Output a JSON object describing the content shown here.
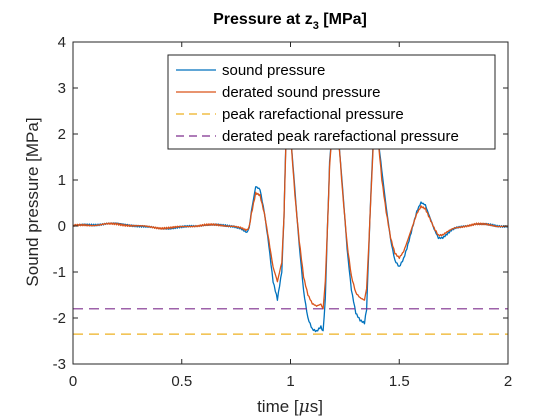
{
  "chart_data": {
    "type": "line",
    "title": "Pressure at z",
    "title_subscript": "3",
    "title_suffix": " [MPa]",
    "xlabel_prefix": "time [",
    "xlabel_greek": "μ",
    "xlabel_suffix": "s]",
    "ylabel": "Sound pressure [MPa]",
    "xlim": [
      0,
      2
    ],
    "ylim": [
      -3,
      4
    ],
    "xticks": [
      0,
      0.5,
      1,
      1.5,
      2
    ],
    "xtick_labels": [
      "0",
      "0.5",
      "1",
      "1.5",
      "2"
    ],
    "yticks": [
      -3,
      -2,
      -1,
      0,
      1,
      2,
      3,
      4
    ],
    "ytick_labels": [
      "-3",
      "-2",
      "-1",
      "0",
      "1",
      "2",
      "3",
      "4"
    ],
    "grid": false,
    "legend_position": "top-right",
    "series": [
      {
        "name": "sound pressure",
        "color": "#0072BD",
        "style": "solid",
        "x": [
          0,
          0.05,
          0.1,
          0.15,
          0.2,
          0.25,
          0.3,
          0.35,
          0.4,
          0.45,
          0.5,
          0.55,
          0.6,
          0.65,
          0.7,
          0.74,
          0.77,
          0.79,
          0.8,
          0.81,
          0.82,
          0.84,
          0.86,
          0.88,
          0.9,
          0.92,
          0.94,
          0.96,
          0.97,
          0.975,
          0.98,
          0.985,
          0.99,
          1.0,
          1.02,
          1.04,
          1.06,
          1.08,
          1.1,
          1.12,
          1.14,
          1.15,
          1.16,
          1.17,
          1.18,
          1.19,
          1.2,
          1.22,
          1.24,
          1.26,
          1.28,
          1.3,
          1.32,
          1.34,
          1.35,
          1.36,
          1.37,
          1.38,
          1.39,
          1.4,
          1.42,
          1.44,
          1.46,
          1.48,
          1.5,
          1.52,
          1.54,
          1.56,
          1.58,
          1.6,
          1.62,
          1.64,
          1.66,
          1.68,
          1.7,
          1.72,
          1.74,
          1.76,
          1.8,
          1.85,
          1.9,
          1.95,
          2.0
        ],
        "values": [
          0.0,
          0.02,
          0.03,
          0.05,
          0.05,
          0.03,
          0.0,
          -0.03,
          -0.05,
          -0.05,
          -0.03,
          0.0,
          0.02,
          0.02,
          0.01,
          0.0,
          -0.05,
          -0.12,
          -0.15,
          -0.05,
          0.3,
          0.85,
          0.8,
          0.3,
          -0.4,
          -1.2,
          -1.6,
          -1.0,
          0.2,
          1.2,
          2.0,
          2.0,
          2.0,
          2.0,
          0.8,
          -0.4,
          -1.4,
          -2.0,
          -2.25,
          -2.3,
          -2.2,
          -2.3,
          -1.6,
          0.0,
          1.4,
          2.0,
          2.0,
          2.0,
          0.8,
          -0.5,
          -1.4,
          -1.9,
          -2.05,
          -2.1,
          -1.8,
          -0.5,
          0.8,
          1.8,
          2.0,
          2.0,
          1.2,
          0.4,
          -0.3,
          -0.75,
          -0.88,
          -0.7,
          -0.4,
          -0.05,
          0.3,
          0.5,
          0.45,
          0.2,
          -0.05,
          -0.25,
          -0.25,
          -0.18,
          -0.1,
          -0.05,
          0.0,
          0.05,
          0.03,
          0.0,
          0.0
        ]
      },
      {
        "name": "derated sound pressure",
        "color": "#D95319",
        "style": "solid",
        "x": [
          0,
          0.05,
          0.1,
          0.15,
          0.2,
          0.25,
          0.3,
          0.35,
          0.4,
          0.45,
          0.5,
          0.55,
          0.6,
          0.65,
          0.7,
          0.74,
          0.77,
          0.79,
          0.8,
          0.81,
          0.82,
          0.84,
          0.86,
          0.88,
          0.9,
          0.92,
          0.94,
          0.96,
          0.97,
          0.975,
          0.98,
          0.985,
          0.99,
          1.0,
          1.02,
          1.04,
          1.06,
          1.08,
          1.1,
          1.12,
          1.14,
          1.15,
          1.16,
          1.17,
          1.18,
          1.19,
          1.2,
          1.22,
          1.24,
          1.26,
          1.28,
          1.3,
          1.32,
          1.34,
          1.35,
          1.36,
          1.37,
          1.38,
          1.39,
          1.4,
          1.42,
          1.44,
          1.46,
          1.48,
          1.5,
          1.52,
          1.54,
          1.56,
          1.58,
          1.6,
          1.62,
          1.64,
          1.66,
          1.68,
          1.7,
          1.72,
          1.74,
          1.76,
          1.8,
          1.85,
          1.9,
          1.95,
          2.0
        ],
        "values": [
          0.0,
          0.02,
          0.02,
          0.04,
          0.04,
          0.02,
          0.0,
          -0.02,
          -0.04,
          -0.04,
          -0.02,
          0.0,
          0.02,
          0.02,
          0.01,
          0.0,
          -0.04,
          -0.09,
          -0.1,
          -0.03,
          0.25,
          0.72,
          0.68,
          0.28,
          -0.3,
          -0.9,
          -1.22,
          -0.8,
          0.2,
          1.1,
          2.0,
          2.0,
          2.0,
          2.0,
          0.7,
          -0.3,
          -1.1,
          -1.5,
          -1.7,
          -1.75,
          -1.7,
          -1.8,
          -1.2,
          0.0,
          1.3,
          2.0,
          2.0,
          2.0,
          0.7,
          -0.4,
          -1.1,
          -1.45,
          -1.55,
          -1.6,
          -1.35,
          -0.4,
          0.7,
          1.7,
          2.0,
          2.0,
          1.0,
          0.3,
          -0.25,
          -0.58,
          -0.68,
          -0.55,
          -0.3,
          -0.03,
          0.25,
          0.42,
          0.38,
          0.18,
          -0.03,
          -0.2,
          -0.2,
          -0.14,
          -0.08,
          -0.04,
          0.0,
          0.04,
          0.03,
          0.0,
          0.0
        ]
      },
      {
        "name": "peak rarefactional pressure",
        "color": "#EDB120",
        "style": "dashed",
        "x": [
          0,
          2
        ],
        "values": [
          -2.35,
          -2.35
        ]
      },
      {
        "name": "derated peak rarefactional pressure",
        "color": "#7E2F8E",
        "style": "dashed",
        "x": [
          0,
          2
        ],
        "values": [
          -1.8,
          -1.8
        ]
      }
    ]
  }
}
